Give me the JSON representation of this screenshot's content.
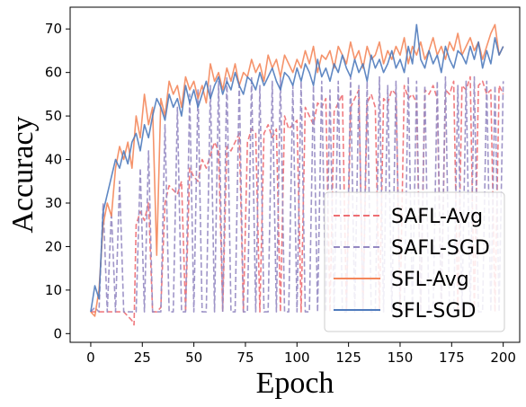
{
  "chart_data": {
    "type": "line",
    "title": "",
    "xlabel": "Epoch",
    "ylabel": "Accuracy",
    "xlim": [
      -10,
      208
    ],
    "ylim": [
      -2,
      75
    ],
    "xticks": [
      0,
      25,
      50,
      75,
      100,
      125,
      150,
      175,
      200
    ],
    "yticks": [
      0,
      10,
      20,
      30,
      40,
      50,
      60,
      70
    ],
    "grid": false,
    "legend_position": "lower-right",
    "series": [
      {
        "name": "SAFL-Avg",
        "color": "#ee6e73",
        "dash": "dashed",
        "x": [
          0,
          2,
          4,
          6,
          8,
          10,
          12,
          14,
          16,
          18,
          20,
          21,
          22,
          24,
          26,
          28,
          30,
          32,
          34,
          36,
          38,
          40,
          42,
          44,
          46,
          48,
          50,
          52,
          54,
          56,
          58,
          60,
          62,
          64,
          66,
          68,
          70,
          72,
          74,
          76,
          78,
          80,
          82,
          84,
          86,
          88,
          90,
          92,
          94,
          96,
          98,
          100,
          102,
          104,
          106,
          108,
          110,
          112,
          114,
          116,
          118,
          120,
          122,
          124,
          126,
          128,
          130,
          132,
          134,
          136,
          138,
          140,
          142,
          144,
          146,
          148,
          150,
          152,
          154,
          156,
          158,
          160,
          162,
          164,
          166,
          168,
          170,
          172,
          174,
          176,
          178,
          180,
          182,
          184,
          186,
          188,
          190,
          192,
          194,
          196,
          198,
          200
        ],
        "y": [
          5,
          5,
          5,
          5,
          5,
          5,
          5,
          5,
          5,
          4,
          3,
          2,
          25,
          28,
          26,
          30,
          5,
          5,
          6,
          30,
          34,
          33,
          32,
          35,
          5,
          38,
          36,
          35,
          40,
          38,
          41,
          44,
          42,
          5,
          43,
          42,
          44,
          46,
          5,
          44,
          47,
          46,
          5,
          46,
          48,
          45,
          47,
          5,
          50,
          47,
          48,
          49,
          5,
          52,
          50,
          48,
          53,
          52,
          54,
          5,
          51,
          53,
          55,
          5,
          52,
          54,
          56,
          5,
          53,
          55,
          52,
          5,
          54,
          53,
          56,
          55,
          5,
          57,
          54,
          55,
          53,
          5,
          56,
          55,
          57,
          54,
          5,
          56,
          55,
          58,
          5,
          57,
          56,
          59,
          5,
          57,
          58,
          55,
          56,
          5,
          57,
          55
        ]
      },
      {
        "name": "SAFL-SGD",
        "color": "#9589c2",
        "dash": "dashed",
        "x": [
          0,
          2,
          4,
          6,
          8,
          10,
          12,
          14,
          16,
          18,
          20,
          22,
          24,
          26,
          28,
          30,
          32,
          34,
          36,
          38,
          40,
          42,
          44,
          46,
          48,
          50,
          52,
          54,
          56,
          58,
          60,
          62,
          64,
          66,
          68,
          70,
          72,
          74,
          76,
          78,
          80,
          82,
          84,
          86,
          88,
          90,
          92,
          94,
          96,
          98,
          100,
          102,
          104,
          106,
          108,
          110,
          112,
          114,
          116,
          118,
          120,
          122,
          124,
          126,
          128,
          130,
          132,
          134,
          136,
          138,
          140,
          142,
          144,
          146,
          148,
          150,
          152,
          154,
          156,
          158,
          160,
          162,
          164,
          166,
          168,
          170,
          172,
          174,
          176,
          178,
          180,
          182,
          184,
          186,
          188,
          190,
          192,
          194,
          196,
          198,
          200
        ],
        "y": [
          5,
          6,
          5,
          30,
          5,
          28,
          5,
          35,
          5,
          5,
          5,
          5,
          38,
          5,
          42,
          5,
          5,
          5,
          48,
          5,
          5,
          52,
          5,
          5,
          55,
          5,
          56,
          5,
          5,
          57,
          5,
          58,
          5,
          59,
          5,
          5,
          58,
          5,
          5,
          59,
          5,
          57,
          5,
          5,
          58,
          5,
          59,
          5,
          5,
          57,
          5,
          58,
          5,
          5,
          57,
          5,
          58,
          5,
          56,
          5,
          58,
          5,
          5,
          59,
          5,
          57,
          5,
          58,
          5,
          5,
          59,
          5,
          57,
          5,
          58,
          5,
          5,
          59,
          5,
          58,
          5,
          57,
          5,
          5,
          58,
          5,
          59,
          5,
          5,
          57,
          5,
          58,
          5,
          59,
          5,
          5,
          58,
          5,
          57,
          5,
          58
        ]
      },
      {
        "name": "SFL-Avg",
        "color": "#f4875b",
        "dash": "solid",
        "x": [
          0,
          2,
          4,
          6,
          8,
          10,
          12,
          14,
          16,
          18,
          20,
          22,
          24,
          26,
          28,
          30,
          32,
          34,
          36,
          38,
          40,
          42,
          44,
          46,
          48,
          50,
          52,
          54,
          56,
          58,
          60,
          62,
          64,
          66,
          68,
          70,
          72,
          74,
          76,
          78,
          80,
          82,
          84,
          86,
          88,
          90,
          92,
          94,
          96,
          98,
          100,
          102,
          104,
          106,
          108,
          110,
          112,
          114,
          116,
          118,
          120,
          122,
          124,
          126,
          128,
          130,
          132,
          134,
          136,
          138,
          140,
          142,
          144,
          146,
          148,
          150,
          152,
          154,
          156,
          158,
          160,
          162,
          164,
          166,
          168,
          170,
          172,
          174,
          176,
          178,
          180,
          182,
          184,
          186,
          188,
          190,
          192,
          194,
          196,
          198,
          200
        ],
        "y": [
          5,
          4,
          10,
          25,
          30,
          27,
          38,
          43,
          40,
          44,
          38,
          50,
          45,
          55,
          48,
          52,
          18,
          54,
          50,
          58,
          55,
          57,
          52,
          59,
          56,
          58,
          54,
          57,
          53,
          62,
          58,
          60,
          56,
          61,
          58,
          62,
          57,
          60,
          59,
          63,
          60,
          62,
          58,
          64,
          61,
          63,
          59,
          64,
          62,
          60,
          63,
          61,
          65,
          62,
          66,
          60,
          64,
          63,
          65,
          61,
          66,
          64,
          62,
          67,
          63,
          65,
          61,
          66,
          63,
          64,
          67,
          62,
          65,
          63,
          66,
          64,
          68,
          62,
          66,
          64,
          67,
          63,
          65,
          68,
          64,
          66,
          63,
          67,
          65,
          69,
          64,
          66,
          68,
          65,
          67,
          63,
          66,
          69,
          71,
          64,
          66
        ]
      },
      {
        "name": "SFL-SGD",
        "color": "#4f7bbd",
        "dash": "solid",
        "x": [
          0,
          2,
          4,
          6,
          8,
          10,
          12,
          14,
          16,
          18,
          20,
          22,
          24,
          26,
          28,
          30,
          32,
          34,
          36,
          38,
          40,
          42,
          44,
          46,
          48,
          50,
          52,
          54,
          56,
          58,
          60,
          62,
          64,
          66,
          68,
          70,
          72,
          74,
          76,
          78,
          80,
          82,
          84,
          86,
          88,
          90,
          92,
          94,
          96,
          98,
          100,
          102,
          104,
          106,
          108,
          110,
          112,
          114,
          116,
          118,
          120,
          122,
          124,
          126,
          128,
          130,
          132,
          134,
          136,
          138,
          140,
          142,
          144,
          146,
          148,
          150,
          152,
          154,
          156,
          158,
          160,
          162,
          164,
          166,
          168,
          170,
          172,
          174,
          176,
          178,
          180,
          182,
          184,
          186,
          188,
          190,
          192,
          194,
          196,
          198,
          200
        ],
        "y": [
          5,
          11,
          8,
          28,
          32,
          36,
          40,
          38,
          42,
          39,
          44,
          46,
          42,
          48,
          45,
          50,
          54,
          52,
          49,
          55,
          52,
          54,
          50,
          57,
          53,
          56,
          52,
          55,
          58,
          54,
          57,
          59,
          55,
          58,
          56,
          60,
          57,
          55,
          59,
          58,
          56,
          60,
          57,
          59,
          61,
          58,
          56,
          60,
          59,
          57,
          61,
          58,
          62,
          60,
          57,
          63,
          59,
          61,
          58,
          62,
          60,
          64,
          61,
          59,
          63,
          60,
          62,
          58,
          64,
          61,
          63,
          60,
          62,
          65,
          61,
          63,
          60,
          66,
          62,
          71,
          63,
          61,
          65,
          62,
          64,
          60,
          66,
          63,
          61,
          65,
          64,
          62,
          66,
          63,
          67,
          61,
          65,
          62,
          68,
          64,
          66
        ]
      }
    ]
  }
}
